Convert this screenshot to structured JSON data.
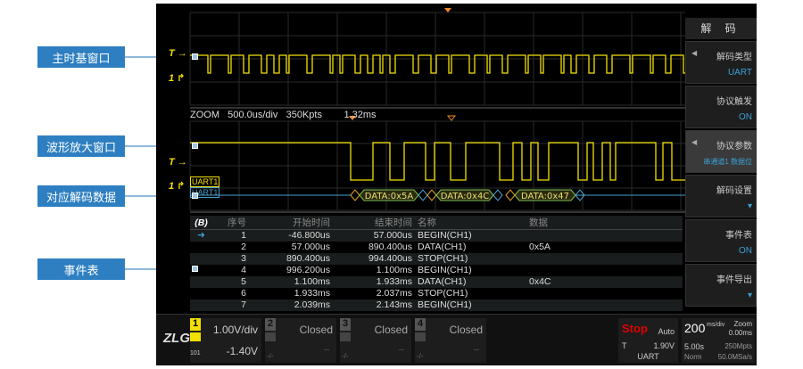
{
  "callouts": [
    "主时基窗口",
    "波形放大窗口",
    "对应解码数据",
    "事件表"
  ],
  "zoom_header": {
    "label": "ZOOM",
    "timebase": "500.0us/div",
    "points": "350Kpts",
    "offset": "1.32ms"
  },
  "markers": {
    "trigger": "T",
    "channel1": "1"
  },
  "decode_tags": [
    "UART1",
    "UART1"
  ],
  "decode_packets": [
    "DATA:0x5A",
    "DATA:0x4C",
    "DATA:0x47"
  ],
  "table": {
    "icon": "B",
    "headers": [
      "序号",
      "开始时间",
      "结束时间",
      "名称",
      "数据"
    ],
    "rows": [
      [
        "1",
        "-46.800us",
        "57.000us",
        "BEGIN(CH1)",
        ""
      ],
      [
        "2",
        "57.000us",
        "890.400us",
        "DATA(CH1)",
        "0x5A"
      ],
      [
        "3",
        "890.400us",
        "994.400us",
        "STOP(CH1)",
        ""
      ],
      [
        "4",
        "996.200us",
        "1.100ms",
        "BEGIN(CH1)",
        ""
      ],
      [
        "5",
        "1.100ms",
        "1.933ms",
        "DATA(CH1)",
        "0x4C"
      ],
      [
        "6",
        "1.933ms",
        "2.037ms",
        "STOP(CH1)",
        ""
      ],
      [
        "7",
        "2.039ms",
        "2.143ms",
        "BEGIN(CH1)",
        ""
      ]
    ]
  },
  "menu": {
    "title": "解 码",
    "items": [
      {
        "label": "解码类型",
        "value": "UART",
        "arrow": true
      },
      {
        "label": "协议触发",
        "value": "ON"
      },
      {
        "label": "协议参数",
        "value": "串通道1 数据位",
        "arrow": true,
        "selected": true
      },
      {
        "label": "解码设置",
        "value": "▾"
      },
      {
        "label": "事件表",
        "value": "ON"
      },
      {
        "label": "事件导出",
        "value": "▾"
      }
    ]
  },
  "bottom": {
    "logo": "ZLG",
    "ch1": {
      "num": "1",
      "scale": "1.00V/div",
      "offset": "-1.40V",
      "decode": "101"
    },
    "ch2": {
      "num": "2",
      "status": "Closed",
      "dash": "--",
      "sub": "-/-"
    },
    "ch3": {
      "num": "3",
      "status": "Closed",
      "dash": "--",
      "sub": "-/-"
    },
    "ch4": {
      "num": "4",
      "status": "Closed",
      "dash": "--",
      "sub": "-/-"
    },
    "trigger": {
      "state": "Stop",
      "mode": "Auto",
      "t": "T",
      "level": "1.90V",
      "type": "UART"
    },
    "timebase": {
      "value": "200",
      "unit": "ms/div",
      "zoom": "Zoom",
      "zoom_val": "0.00ms",
      "delay": "5.00s",
      "mem": "250Mpts",
      "acq": "Norm",
      "rate": "50.0MSa/s"
    }
  },
  "colors": {
    "ch1": "#f2e000",
    "decode": "#4aa0d0",
    "callout": "#2e7fc1",
    "stop": "#e00000"
  }
}
